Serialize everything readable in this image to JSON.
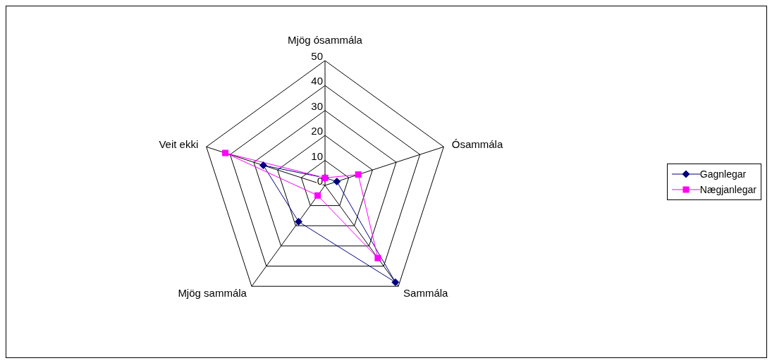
{
  "chart_data": {
    "type": "radar",
    "categories": [
      "Mjög ósammála",
      "Ósammála",
      "Sammála",
      "Mjög sammála",
      "Veit ekki"
    ],
    "series": [
      {
        "name": "Gagnlegar",
        "color": "#000080",
        "marker": "diamond",
        "values": [
          3,
          5,
          48,
          18,
          26
        ]
      },
      {
        "name": "Nægjanlegar",
        "color": "#ff00ff",
        "marker": "square",
        "values": [
          3,
          14,
          36,
          5,
          42
        ]
      }
    ],
    "ylim": [
      0,
      50
    ],
    "yticks": [
      0,
      10,
      20,
      30,
      40,
      50
    ],
    "grid": true,
    "legend": "right"
  }
}
